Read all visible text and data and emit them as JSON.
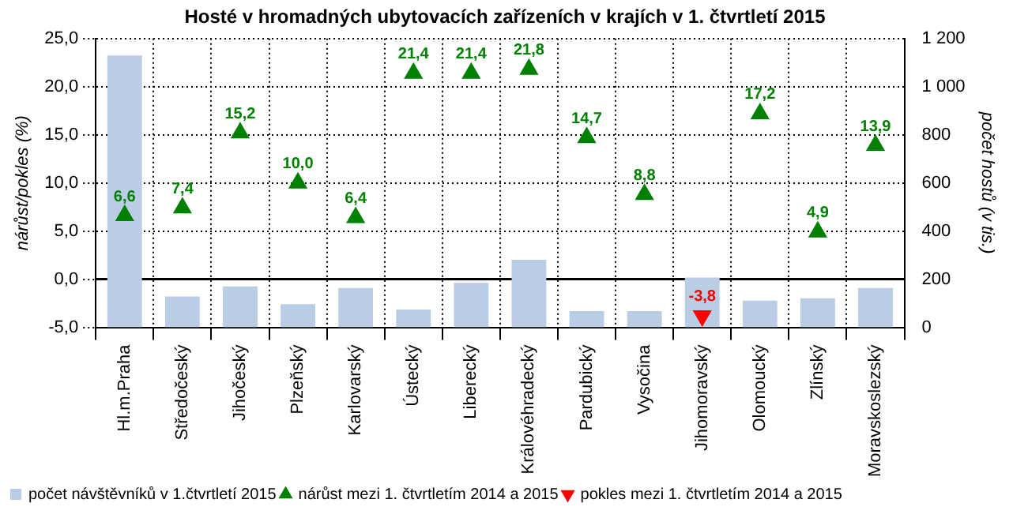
{
  "chart_data": {
    "type": "bar",
    "title": "Hosté v hromadných ubytovacích zařízeních v krajích v 1. čtvrtletí 2015",
    "ylabel": "nárůst/pokles (%)",
    "y2label": "počet hostů (v tis.)",
    "categories": [
      "Hl.m.Praha",
      "Středočeský",
      "Jihočeský",
      "Plzeňský",
      "Karlovarský",
      "Ústecký",
      "Liberecký",
      "Královéhradecký",
      "Pardubický",
      "Vysočina",
      "Jihomoravský",
      "Olomoucký",
      "Zlínský",
      "Moravskoslezský"
    ],
    "series": [
      {
        "name": "počet návštěvníků v 1.čtvrtletí 2015",
        "axis": "y2",
        "color": "#b9cde5",
        "values": [
          1130,
          128,
          170,
          96,
          163,
          74,
          185,
          281,
          67,
          67,
          207,
          111,
          121,
          163
        ]
      },
      {
        "name": "nárůst mezi 1. čtvrtletím 2014 a 2015",
        "type": "scatter",
        "color": "#008000",
        "values": [
          6.6,
          7.4,
          15.2,
          10.0,
          6.4,
          21.4,
          21.4,
          21.8,
          14.7,
          8.8,
          null,
          17.2,
          4.9,
          13.9
        ],
        "value_labels": [
          "6,6",
          "7,4",
          "15,2",
          "10,0",
          "6,4",
          "21,4",
          "21,4",
          "21,8",
          "14,7",
          "8,8",
          null,
          "17,2",
          "4,9",
          "13,9"
        ]
      },
      {
        "name": "pokles mezi 1. čtvrtletím 2014 a 2015",
        "type": "scatter",
        "color": "#ff0000",
        "values": [
          null,
          null,
          null,
          null,
          null,
          null,
          null,
          null,
          null,
          null,
          -3.8,
          null,
          null,
          null
        ],
        "value_labels": [
          null,
          null,
          null,
          null,
          null,
          null,
          null,
          null,
          null,
          null,
          "-3,8",
          null,
          null,
          null
        ]
      }
    ],
    "ylim": [
      -5,
      25
    ],
    "yticks": [
      {
        "value": -5,
        "label": "-5,0"
      },
      {
        "value": 0,
        "label": "0,0"
      },
      {
        "value": 5,
        "label": "5,0"
      },
      {
        "value": 10,
        "label": "10,0"
      },
      {
        "value": 15,
        "label": "15,0"
      },
      {
        "value": 20,
        "label": "20,0"
      },
      {
        "value": 25,
        "label": "25,0"
      }
    ],
    "y2lim": [
      0,
      1200
    ],
    "y2ticks": [
      0,
      200,
      400,
      600,
      800,
      {
        "value": 1000,
        "label": "1 000"
      },
      {
        "value": 1200,
        "label": "1 200"
      }
    ],
    "ref_lines": [
      {
        "axis": "y",
        "value": 0,
        "color": "#000000"
      }
    ],
    "grid": true,
    "legend": "bottom left",
    "marker": "triangle"
  }
}
